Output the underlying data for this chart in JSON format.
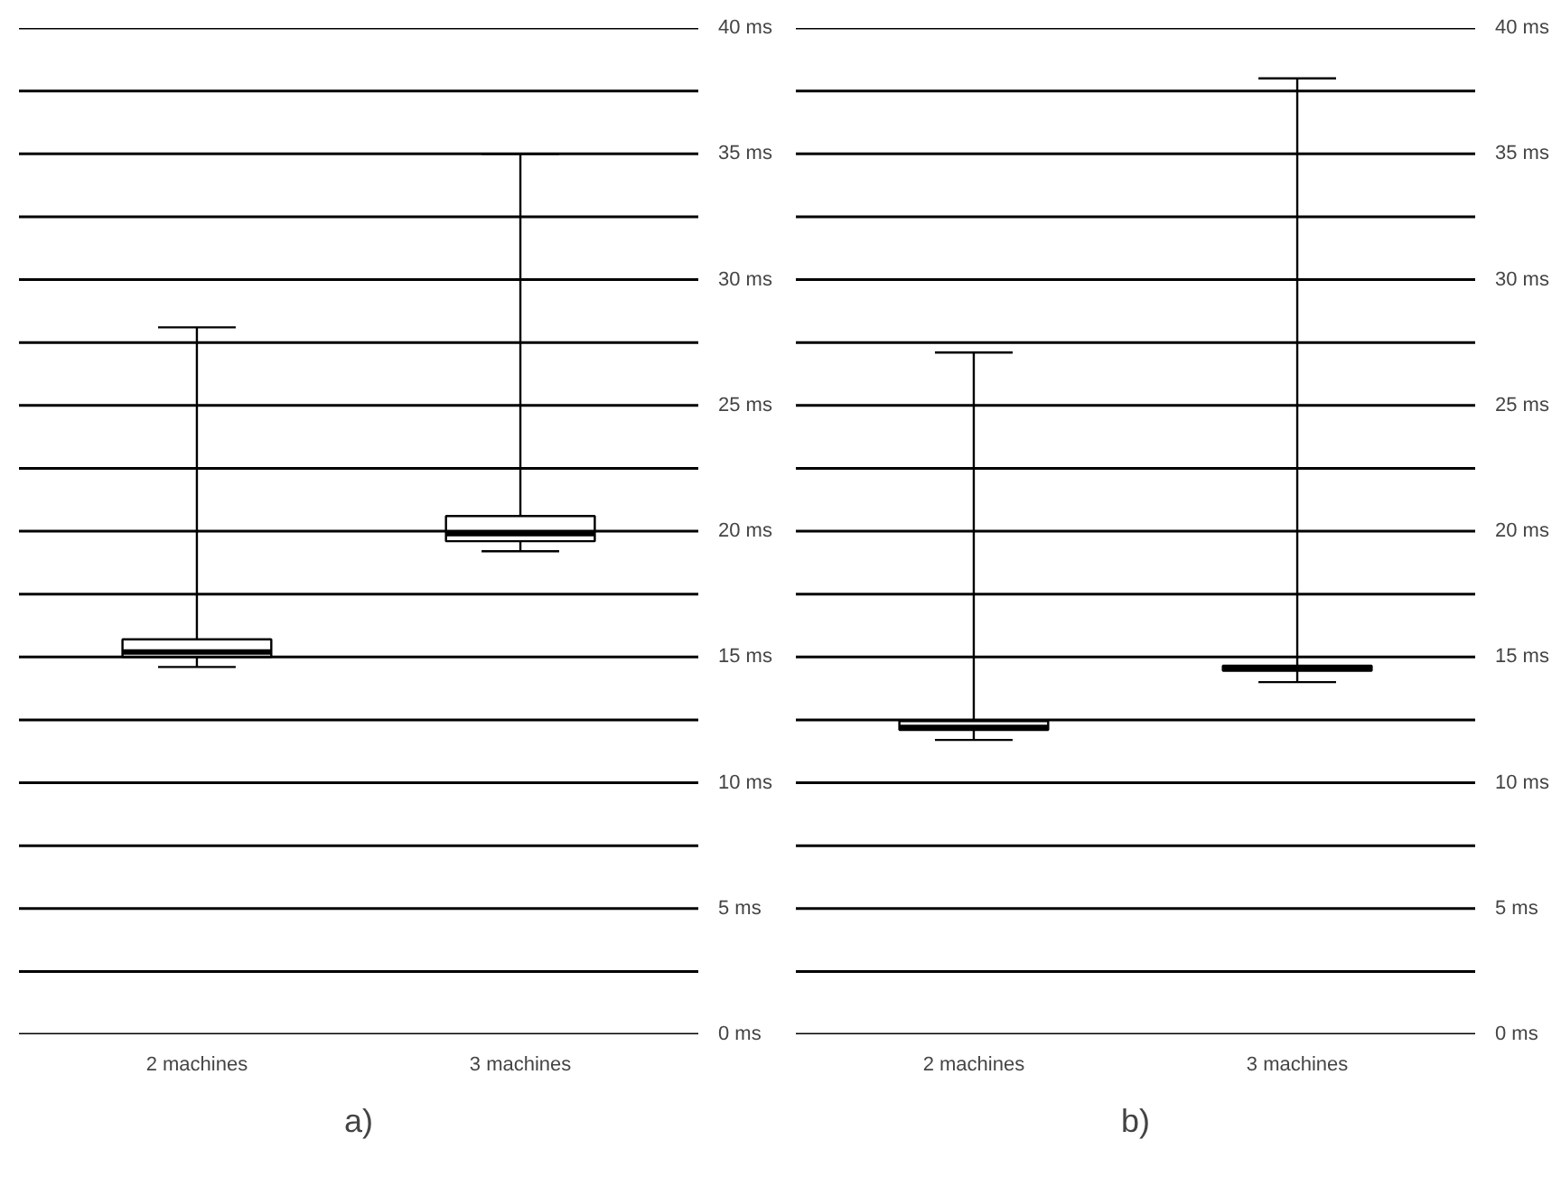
{
  "chart_data": [
    {
      "type": "box",
      "title": "a)",
      "categories": [
        "2 machines",
        "3 machines"
      ],
      "boxes": [
        {
          "low": 14.6,
          "q1": 15.0,
          "median": 15.2,
          "q3": 15.7,
          "high": 28.1
        },
        {
          "low": 19.2,
          "q1": 19.6,
          "median": 19.9,
          "q3": 20.6,
          "high": 35.0
        }
      ],
      "ylim": [
        0,
        40
      ],
      "yticks": [
        {
          "value": 0,
          "label": "0 ms"
        },
        {
          "value": 2.5,
          "label": null
        },
        {
          "value": 5,
          "label": "5 ms"
        },
        {
          "value": 7.5,
          "label": null
        },
        {
          "value": 10,
          "label": "10 ms"
        },
        {
          "value": 12.5,
          "label": null
        },
        {
          "value": 15,
          "label": "15 ms"
        },
        {
          "value": 17.5,
          "label": null
        },
        {
          "value": 20,
          "label": "20 ms"
        },
        {
          "value": 22.5,
          "label": null
        },
        {
          "value": 25,
          "label": "25 ms"
        },
        {
          "value": 27.5,
          "label": null
        },
        {
          "value": 30,
          "label": "30 ms"
        },
        {
          "value": 32.5,
          "label": null
        },
        {
          "value": 35,
          "label": "35 ms"
        },
        {
          "value": 37.5,
          "label": null
        },
        {
          "value": 40,
          "label": "40 ms"
        }
      ],
      "grid": "y"
    },
    {
      "type": "box",
      "title": "b)",
      "categories": [
        "2 machines",
        "3 machines"
      ],
      "boxes": [
        {
          "low": 11.7,
          "q1": 12.1,
          "median": 12.2,
          "q3": 12.45,
          "high": 27.1
        },
        {
          "low": 14.0,
          "q1": 14.45,
          "median": 14.55,
          "q3": 14.65,
          "high": 38.0
        }
      ],
      "ylim": [
        0,
        40
      ],
      "yticks": [
        {
          "value": 0,
          "label": "0 ms"
        },
        {
          "value": 2.5,
          "label": null
        },
        {
          "value": 5,
          "label": "5 ms"
        },
        {
          "value": 7.5,
          "label": null
        },
        {
          "value": 10,
          "label": "10 ms"
        },
        {
          "value": 12.5,
          "label": null
        },
        {
          "value": 15,
          "label": "15 ms"
        },
        {
          "value": 17.5,
          "label": null
        },
        {
          "value": 20,
          "label": "20 ms"
        },
        {
          "value": 22.5,
          "label": null
        },
        {
          "value": 25,
          "label": "25 ms"
        },
        {
          "value": 27.5,
          "label": null
        },
        {
          "value": 30,
          "label": "30 ms"
        },
        {
          "value": 32.5,
          "label": null
        },
        {
          "value": 35,
          "label": "35 ms"
        },
        {
          "value": 37.5,
          "label": null
        },
        {
          "value": 40,
          "label": "40 ms"
        }
      ],
      "grid": "y"
    }
  ]
}
